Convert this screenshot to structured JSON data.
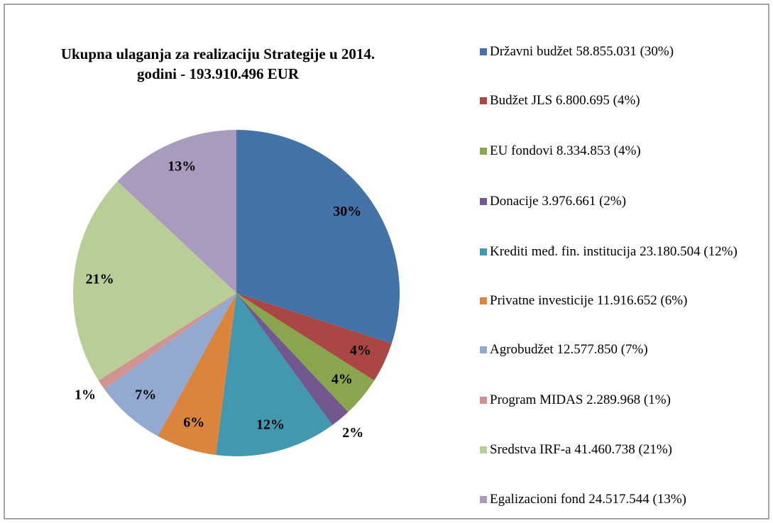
{
  "chart_data": {
    "type": "pie",
    "title": "Ukupna ulaganja za realizaciju Strategije u 2014. godini - 193.910.496 EUR",
    "series": [
      {
        "name": "Državni budžet 58.855.031 (30%)",
        "color": "#4572a7"
      },
      {
        "name": "Budžet JLS  6.800.695 (4%)",
        "color": "#aa4643"
      },
      {
        "name": "EU fondovi 8.334.853 (4%)",
        "color": "#89a54e"
      },
      {
        "name": "Donacije 3.976.661 (2%)",
        "color": "#71588f"
      },
      {
        "name": "Krediti međ. fin. institucija 23.180.504 (12%)",
        "color": "#4198af"
      },
      {
        "name": "Privatne investicije 11.916.652 (6%)",
        "color": "#db843d"
      },
      {
        "name": "Agrobudžet 12.577.850 (7%)",
        "color": "#93a9cf"
      },
      {
        "name": "Program MIDAS 2.289.968 (1%)",
        "color": "#d19392"
      },
      {
        "name": "Sredstva IRF-a 41.460.738 (21%)",
        "color": "#b9cd96"
      },
      {
        "name": "Egalizacioni fond 24.517.544 (13%)",
        "color": "#a99bbd"
      }
    ],
    "values": [
      30,
      4,
      4,
      2,
      12,
      6,
      7,
      1,
      21,
      13
    ],
    "value_labels": [
      "30%",
      "4%",
      "4%",
      "2%",
      "12%",
      "6%",
      "7%",
      "1%",
      "21%",
      "13%"
    ]
  }
}
